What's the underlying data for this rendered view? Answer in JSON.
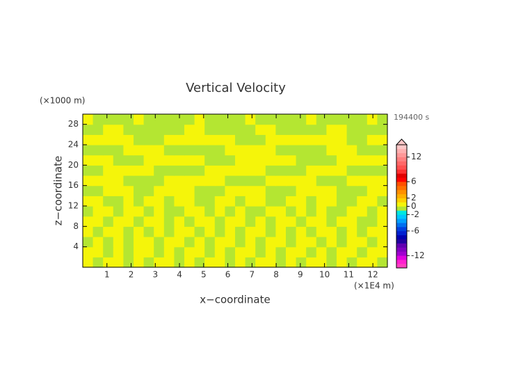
{
  "chart_data": {
    "type": "contour",
    "title": "Vertical Velocity",
    "x_label": "x−coordinate",
    "y_label": "z−coordinate",
    "x_unit": "(×1E4 m)",
    "y_unit": "(×1000 m)",
    "time_label": "194400 s",
    "xlim": [
      0,
      12.6
    ],
    "ylim": [
      0,
      30
    ],
    "xticks": [
      1,
      2,
      3,
      4,
      5,
      6,
      7,
      8,
      9,
      10,
      11,
      12
    ],
    "yticks": [
      4,
      8,
      12,
      16,
      20,
      24,
      28
    ],
    "z": [
      [
        0.5,
        -0.5,
        0.5,
        0.5,
        -0.5,
        0.5,
        -0.5,
        0.5,
        0.5,
        -0.5,
        0.5,
        -0.5,
        0.5,
        0.5,
        -0.5,
        0.5,
        -0.5,
        0.5,
        0.5,
        -0.5,
        0.5,
        -0.5,
        0.5,
        0.5,
        -0.5,
        0.5,
        -0.5,
        0.5,
        0.5,
        -0.5
      ],
      [
        0.5,
        0.5,
        -0.5,
        0.5,
        -0.5,
        0.5,
        0.5,
        -0.5,
        0.5,
        -0.5,
        0.5,
        0.5,
        -0.5,
        0.5,
        -0.5,
        0.5,
        0.5,
        -0.5,
        0.5,
        -0.5,
        0.5,
        0.5,
        -0.5,
        0.5,
        -0.5,
        0.5,
        0.5,
        -0.5,
        0.5,
        0.5
      ],
      [
        -0.5,
        0.5,
        -0.5,
        0.5,
        -0.5,
        0.5,
        0.5,
        -0.5,
        0.5,
        0.5,
        -0.5,
        0.5,
        -0.5,
        0.5,
        0.5,
        -0.5,
        0.5,
        -0.5,
        0.5,
        0.5,
        -0.5,
        0.5,
        0.5,
        -0.5,
        0.5,
        -0.5,
        0.5,
        0.5,
        -0.5,
        0.5
      ],
      [
        0.5,
        -0.5,
        0.5,
        0.5,
        -0.5,
        0.5,
        -0.5,
        0.5,
        -0.5,
        0.5,
        0.5,
        -0.5,
        0.5,
        -0.5,
        0.5,
        -0.5,
        0.5,
        0.5,
        -0.5,
        0.5,
        -0.5,
        0.5,
        -0.5,
        0.5,
        0.5,
        -0.5,
        0.5,
        -0.5,
        0.5,
        0.5
      ],
      [
        0.5,
        0.5,
        -0.5,
        0.5,
        0.5,
        -0.5,
        0.5,
        0.5,
        -0.5,
        0.5,
        -0.5,
        0.5,
        0.5,
        -0.5,
        0.5,
        0.5,
        -0.5,
        0.5,
        -0.5,
        0.5,
        0.5,
        -0.5,
        0.5,
        0.5,
        -0.5,
        0.5,
        0.5,
        -0.5,
        -0.5,
        0.5
      ],
      [
        -0.5,
        0.5,
        0.5,
        -0.5,
        0.5,
        0.5,
        -0.5,
        0.5,
        -0.5,
        -0.5,
        0.5,
        0.5,
        -0.5,
        0.5,
        -0.5,
        0.5,
        -0.5,
        -0.5,
        0.5,
        0.5,
        -0.5,
        0.5,
        -0.5,
        0.5,
        -0.5,
        -0.5,
        0.5,
        0.5,
        -0.5,
        0.5
      ],
      [
        0.5,
        0.5,
        -0.5,
        -0.5,
        0.5,
        -0.5,
        0.5,
        0.5,
        -0.5,
        0.5,
        0.5,
        -0.5,
        -0.5,
        0.5,
        0.5,
        -0.5,
        0.5,
        0.5,
        -0.5,
        -0.5,
        0.5,
        0.5,
        -0.5,
        0.5,
        0.5,
        -0.5,
        -0.5,
        0.5,
        0.5,
        -0.5
      ],
      [
        -0.5,
        -0.5,
        0.5,
        0.5,
        0.5,
        -0.5,
        -0.5,
        0.5,
        0.5,
        0.5,
        0.5,
        -0.5,
        -0.5,
        -0.5,
        0.5,
        0.5,
        0.5,
        0.5,
        -0.5,
        -0.5,
        -0.5,
        0.5,
        0.5,
        0.5,
        0.5,
        -0.5,
        -0.5,
        -0.5,
        0.5,
        0.5
      ],
      [
        0.5,
        0.5,
        0.5,
        0.5,
        -0.5,
        -0.5,
        -0.5,
        -0.5,
        0.5,
        0.5,
        0.5,
        0.5,
        0.5,
        0.5,
        -0.5,
        -0.5,
        -0.5,
        -0.5,
        0.5,
        0.5,
        0.5,
        0.5,
        0.5,
        -0.5,
        -0.5,
        -0.5,
        0.5,
        0.5,
        0.5,
        0.5
      ],
      [
        -0.5,
        -0.5,
        0.5,
        0.5,
        0.5,
        0.5,
        0.5,
        -0.5,
        -0.5,
        -0.5,
        -0.5,
        -0.5,
        0.5,
        0.5,
        0.5,
        0.5,
        0.5,
        0.5,
        -0.5,
        -0.5,
        -0.5,
        -0.5,
        0.5,
        0.5,
        0.5,
        0.5,
        -0.5,
        -0.5,
        -0.5,
        -0.5
      ],
      [
        0.5,
        0.5,
        0.5,
        -0.5,
        -0.5,
        -0.5,
        0.5,
        0.5,
        0.5,
        0.5,
        0.5,
        0.5,
        -0.5,
        -0.5,
        -0.5,
        0.5,
        0.5,
        0.5,
        0.5,
        0.5,
        0.5,
        -0.5,
        -0.5,
        -0.5,
        -0.5,
        0.5,
        0.5,
        0.5,
        0.5,
        0.5
      ],
      [
        -0.5,
        -0.5,
        -0.5,
        -0.5,
        0.5,
        0.5,
        0.5,
        0.5,
        -0.5,
        -0.5,
        -0.5,
        -0.5,
        -0.5,
        -0.5,
        0.5,
        0.5,
        0.5,
        0.5,
        0.5,
        -0.5,
        -0.5,
        -0.5,
        -0.5,
        -0.5,
        0.5,
        0.5,
        0.5,
        -0.5,
        -0.5,
        -0.5
      ],
      [
        0.5,
        0.5,
        0.5,
        0.5,
        0.5,
        -0.5,
        -0.5,
        -0.5,
        0.5,
        0.5,
        0.5,
        0.5,
        0.5,
        0.5,
        0.5,
        -0.5,
        -0.5,
        -0.5,
        0.5,
        0.5,
        0.5,
        0.5,
        0.5,
        0.5,
        0.5,
        0.5,
        -0.5,
        -0.5,
        0.5,
        0.5
      ],
      [
        -0.5,
        -0.5,
        0.5,
        0.5,
        -0.5,
        -0.5,
        -0.5,
        -0.5,
        -0.5,
        -0.5,
        0.5,
        0.5,
        -0.5,
        -0.5,
        -0.5,
        -0.5,
        -0.5,
        0.5,
        0.5,
        -0.5,
        -0.5,
        -0.5,
        -0.5,
        -0.5,
        0.5,
        0.5,
        -0.5,
        -0.5,
        -0.5,
        -0.5
      ],
      [
        0.5,
        -0.5,
        -0.5,
        -0.5,
        -0.5,
        0.5,
        -0.5,
        -0.5,
        -0.5,
        -0.5,
        -0.5,
        0.5,
        -0.5,
        -0.5,
        -0.5,
        -0.5,
        0.5,
        -0.5,
        -0.5,
        -0.5,
        -0.5,
        -0.5,
        0.5,
        -0.5,
        -0.5,
        -0.5,
        -0.5,
        -0.5,
        0.5,
        -0.5
      ]
    ],
    "colorbar": {
      "lim": [
        -15,
        15
      ],
      "ticks": [
        -12,
        -6,
        -2,
        0,
        2,
        6,
        12
      ],
      "colors": [
        "#ff40c0",
        "#ff20d0",
        "#e000e0",
        "#a000d0",
        "#8000c0",
        "#6000b0",
        "#2000a0",
        "#0000b0",
        "#0020d0",
        "#0040e0",
        "#0070f0",
        "#00a0ff",
        "#00c8ff",
        "#00e8e0",
        "#b4e632",
        "#f5f50a",
        "#ffd000",
        "#ffb000",
        "#ff9000",
        "#ff7000",
        "#ff5000",
        "#ff0000",
        "#e00000",
        "#ff3030",
        "#ff5050",
        "#ff6868",
        "#ff8080",
        "#ff9898",
        "#ffb0b0",
        "#ffc8c8"
      ]
    }
  }
}
